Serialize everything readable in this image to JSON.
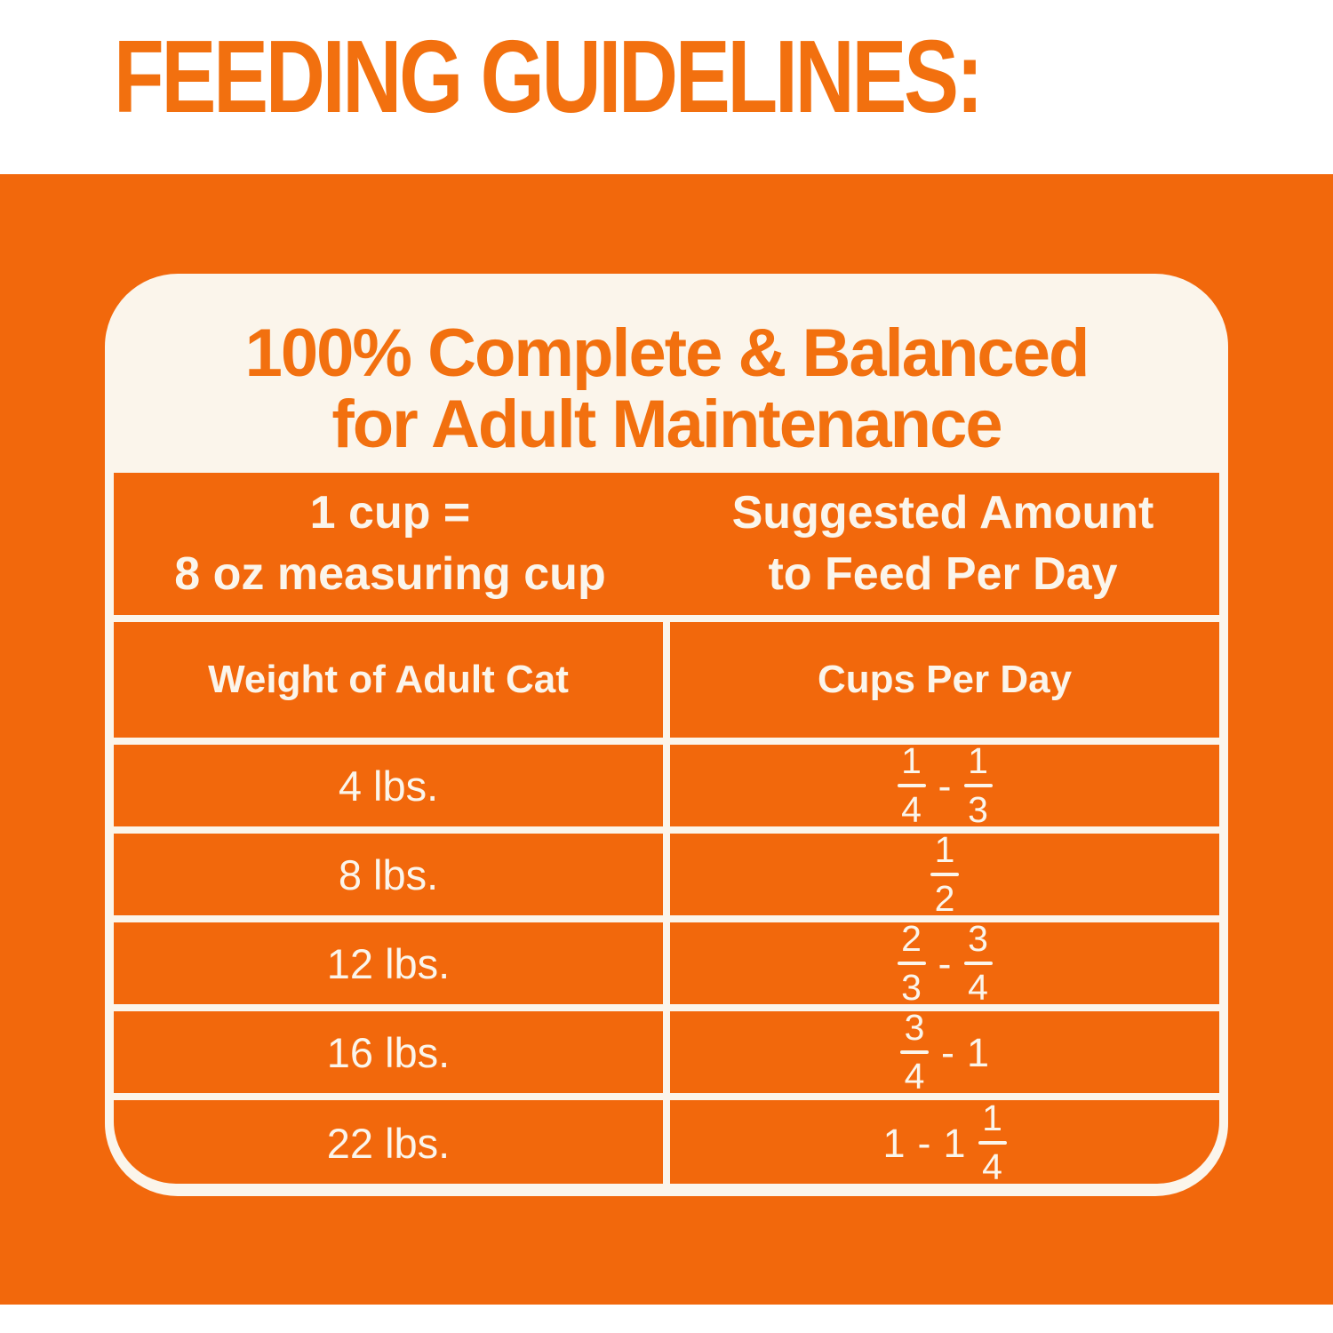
{
  "title": "FEEDING GUIDELINES:",
  "card": {
    "heading": [
      "100% Complete & Balanced",
      "for Adult Maintenance"
    ]
  },
  "table": {
    "unit_header": {
      "left": [
        "1 cup =",
        "8 oz measuring cup"
      ],
      "right": [
        "Suggested Amount",
        "to Feed Per Day"
      ]
    },
    "columns": [
      "Weight of Adult Cat",
      "Cups Per Day"
    ],
    "rows": [
      {
        "weight": "4 lbs.",
        "cups": [
          {
            "frac": [
              "1",
              "4"
            ]
          },
          {
            "text": "-"
          },
          {
            "frac": [
              "1",
              "3"
            ]
          }
        ]
      },
      {
        "weight": "8 lbs.",
        "cups": [
          {
            "frac": [
              "1",
              "2"
            ]
          }
        ]
      },
      {
        "weight": "12 lbs.",
        "cups": [
          {
            "frac": [
              "2",
              "3"
            ]
          },
          {
            "text": "-"
          },
          {
            "frac": [
              "3",
              "4"
            ]
          }
        ]
      },
      {
        "weight": "16 lbs.",
        "cups": [
          {
            "frac": [
              "3",
              "4"
            ]
          },
          {
            "text": "-"
          },
          {
            "text": "1"
          }
        ]
      },
      {
        "weight": "22 lbs.",
        "cups": [
          {
            "text": "1"
          },
          {
            "text": "-"
          },
          {
            "text": "1"
          },
          {
            "frac": [
              "1",
              "4"
            ]
          }
        ]
      }
    ]
  },
  "colors": {
    "orange_background": "#F2680C",
    "accent_text_orange": "#F2700F",
    "cream_white": "#FBF5EB"
  }
}
